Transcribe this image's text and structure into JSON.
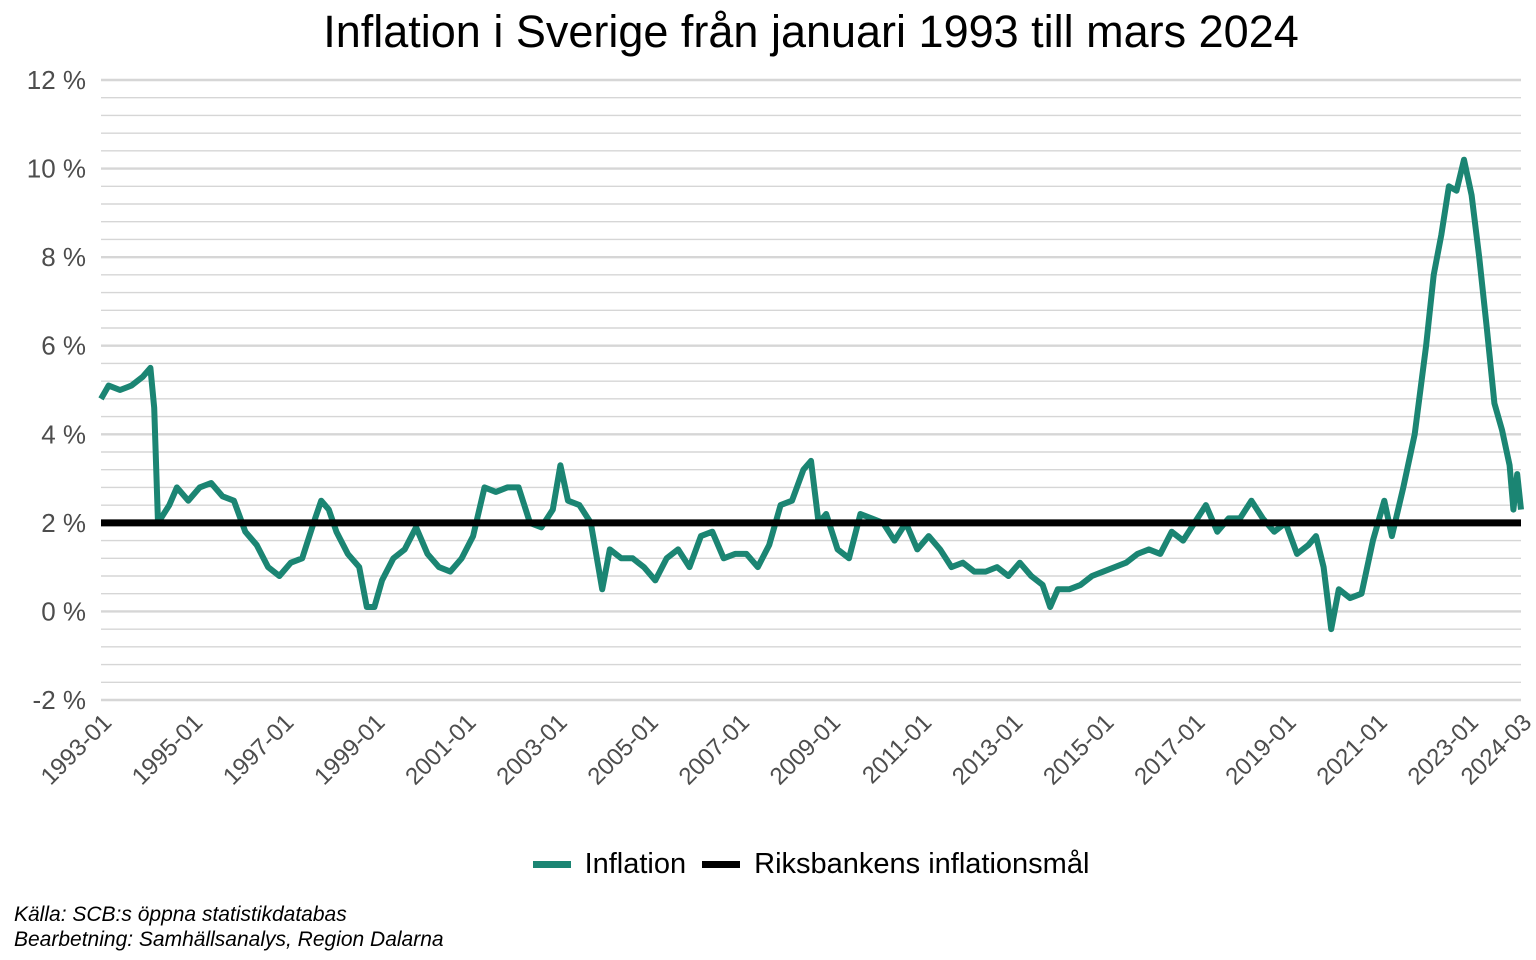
{
  "chart_data": {
    "type": "line",
    "title": "Inflation i Sverige från januari 1993 till mars 2024",
    "xlabel": "",
    "ylabel": "",
    "ylim": [
      -2,
      12
    ],
    "y_ticks": [
      "-2 %",
      "0 %",
      "2 %",
      "4 %",
      "6 %",
      "8 %",
      "10 %",
      "12 %"
    ],
    "y_tick_values": [
      -2,
      0,
      2,
      4,
      6,
      8,
      10,
      12
    ],
    "x_ticks": [
      "1993-01",
      "1995-01",
      "1997-01",
      "1999-01",
      "2001-01",
      "2003-01",
      "2005-01",
      "2007-01",
      "2009-01",
      "2011-01",
      "2013-01",
      "2015-01",
      "2017-01",
      "2019-01",
      "2021-01",
      "2023-01",
      "2024-03"
    ],
    "x_range": [
      "1993-01",
      "2024-03"
    ],
    "grid": true,
    "legend_position": "bottom",
    "series": [
      {
        "name": "Inflation",
        "color": "#1b8573",
        "points": [
          [
            "1993-01",
            4.8
          ],
          [
            "1993-03",
            5.1
          ],
          [
            "1993-06",
            5.0
          ],
          [
            "1993-09",
            5.1
          ],
          [
            "1993-12",
            5.3
          ],
          [
            "1994-02",
            5.5
          ],
          [
            "1994-03",
            4.6
          ],
          [
            "1994-04",
            2.0
          ],
          [
            "1994-07",
            2.4
          ],
          [
            "1994-09",
            2.8
          ],
          [
            "1994-12",
            2.5
          ],
          [
            "1995-03",
            2.8
          ],
          [
            "1995-06",
            2.9
          ],
          [
            "1995-09",
            2.6
          ],
          [
            "1995-12",
            2.5
          ],
          [
            "1996-03",
            1.8
          ],
          [
            "1996-06",
            1.5
          ],
          [
            "1996-09",
            1.0
          ],
          [
            "1996-12",
            0.8
          ],
          [
            "1997-03",
            1.1
          ],
          [
            "1997-06",
            1.2
          ],
          [
            "1997-09",
            2.0
          ],
          [
            "1997-11",
            2.5
          ],
          [
            "1998-01",
            2.3
          ],
          [
            "1998-03",
            1.8
          ],
          [
            "1998-06",
            1.3
          ],
          [
            "1998-09",
            1.0
          ],
          [
            "1998-11",
            0.1
          ],
          [
            "1999-01",
            0.1
          ],
          [
            "1999-03",
            0.7
          ],
          [
            "1999-06",
            1.2
          ],
          [
            "1999-09",
            1.4
          ],
          [
            "1999-12",
            1.9
          ],
          [
            "2000-03",
            1.3
          ],
          [
            "2000-06",
            1.0
          ],
          [
            "2000-09",
            0.9
          ],
          [
            "2000-12",
            1.2
          ],
          [
            "2001-03",
            1.7
          ],
          [
            "2001-06",
            2.8
          ],
          [
            "2001-09",
            2.7
          ],
          [
            "2001-12",
            2.8
          ],
          [
            "2002-03",
            2.8
          ],
          [
            "2002-06",
            2.0
          ],
          [
            "2002-09",
            1.9
          ],
          [
            "2002-12",
            2.3
          ],
          [
            "2003-02",
            3.3
          ],
          [
            "2003-04",
            2.5
          ],
          [
            "2003-07",
            2.4
          ],
          [
            "2003-10",
            2.0
          ],
          [
            "2004-01",
            0.5
          ],
          [
            "2004-03",
            1.4
          ],
          [
            "2004-06",
            1.2
          ],
          [
            "2004-09",
            1.2
          ],
          [
            "2004-12",
            1.0
          ],
          [
            "2005-03",
            0.7
          ],
          [
            "2005-06",
            1.2
          ],
          [
            "2005-09",
            1.4
          ],
          [
            "2005-12",
            1.0
          ],
          [
            "2006-03",
            1.7
          ],
          [
            "2006-06",
            1.8
          ],
          [
            "2006-09",
            1.2
          ],
          [
            "2006-12",
            1.3
          ],
          [
            "2007-03",
            1.3
          ],
          [
            "2007-06",
            1.0
          ],
          [
            "2007-09",
            1.5
          ],
          [
            "2007-12",
            2.4
          ],
          [
            "2008-03",
            2.5
          ],
          [
            "2008-06",
            3.2
          ],
          [
            "2008-08",
            3.4
          ],
          [
            "2008-10",
            2.0
          ],
          [
            "2008-12",
            2.2
          ],
          [
            "2009-03",
            1.4
          ],
          [
            "2009-06",
            1.2
          ],
          [
            "2009-09",
            2.2
          ],
          [
            "2009-12",
            2.1
          ],
          [
            "2010-03",
            2.0
          ],
          [
            "2010-06",
            1.6
          ],
          [
            "2010-09",
            2.0
          ],
          [
            "2010-12",
            1.4
          ],
          [
            "2011-03",
            1.7
          ],
          [
            "2011-06",
            1.4
          ],
          [
            "2011-09",
            1.0
          ],
          [
            "2011-12",
            1.1
          ],
          [
            "2012-03",
            0.9
          ],
          [
            "2012-06",
            0.9
          ],
          [
            "2012-09",
            1.0
          ],
          [
            "2012-12",
            0.8
          ],
          [
            "2013-03",
            1.1
          ],
          [
            "2013-06",
            0.8
          ],
          [
            "2013-09",
            0.6
          ],
          [
            "2013-11",
            0.1
          ],
          [
            "2014-01",
            0.5
          ],
          [
            "2014-04",
            0.5
          ],
          [
            "2014-07",
            0.6
          ],
          [
            "2014-10",
            0.8
          ],
          [
            "2015-01",
            0.9
          ],
          [
            "2015-04",
            1.0
          ],
          [
            "2015-07",
            1.1
          ],
          [
            "2015-10",
            1.3
          ],
          [
            "2016-01",
            1.4
          ],
          [
            "2016-04",
            1.3
          ],
          [
            "2016-07",
            1.8
          ],
          [
            "2016-10",
            1.6
          ],
          [
            "2017-01",
            2.0
          ],
          [
            "2017-04",
            2.4
          ],
          [
            "2017-07",
            1.8
          ],
          [
            "2017-10",
            2.1
          ],
          [
            "2018-01",
            2.1
          ],
          [
            "2018-04",
            2.5
          ],
          [
            "2018-07",
            2.1
          ],
          [
            "2018-10",
            1.8
          ],
          [
            "2019-01",
            2.0
          ],
          [
            "2019-04",
            1.3
          ],
          [
            "2019-07",
            1.5
          ],
          [
            "2019-09",
            1.7
          ],
          [
            "2019-11",
            1.0
          ],
          [
            "2020-01",
            -0.4
          ],
          [
            "2020-03",
            0.5
          ],
          [
            "2020-06",
            0.3
          ],
          [
            "2020-09",
            0.4
          ],
          [
            "2020-12",
            1.6
          ],
          [
            "2021-03",
            2.5
          ],
          [
            "2021-05",
            1.7
          ],
          [
            "2021-08",
            2.8
          ],
          [
            "2021-11",
            4.0
          ],
          [
            "2022-02",
            6.0
          ],
          [
            "2022-04",
            7.6
          ],
          [
            "2022-06",
            8.5
          ],
          [
            "2022-08",
            9.6
          ],
          [
            "2022-10",
            9.5
          ],
          [
            "2022-12",
            10.2
          ],
          [
            "2023-02",
            9.4
          ],
          [
            "2023-04",
            8.0
          ],
          [
            "2023-06",
            6.4
          ],
          [
            "2023-08",
            4.7
          ],
          [
            "2023-10",
            4.1
          ],
          [
            "2023-12",
            3.3
          ],
          [
            "2024-01",
            2.3
          ],
          [
            "2024-02",
            3.1
          ],
          [
            "2024-03",
            2.3
          ]
        ]
      },
      {
        "name": "Riksbankens inflationsmål",
        "color": "#000000",
        "points": [
          [
            "1993-01",
            2.0
          ],
          [
            "2024-03",
            2.0
          ]
        ]
      }
    ]
  },
  "caption": {
    "source": "Källa: SCB:s öppna statistikdatabas",
    "processing": "Bearbetning: Samhällsanalys, Region Dalarna"
  }
}
